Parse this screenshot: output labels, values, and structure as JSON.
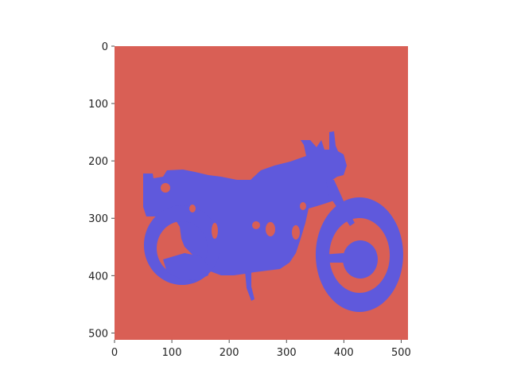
{
  "figure": {
    "image_size": [
      512,
      512
    ],
    "background_class_color": "#d95f55",
    "foreground_class_color": "#5f59dc",
    "foreground_subject": "motorcycle",
    "x_axis": {
      "range": [
        0,
        512
      ],
      "ticks": [
        {
          "value": 0,
          "label": "0"
        },
        {
          "value": 100,
          "label": "100"
        },
        {
          "value": 200,
          "label": "200"
        },
        {
          "value": 300,
          "label": "300"
        },
        {
          "value": 400,
          "label": "400"
        },
        {
          "value": 500,
          "label": "500"
        }
      ]
    },
    "y_axis": {
      "range": [
        0,
        512
      ],
      "inverted": true,
      "ticks": [
        {
          "value": 0,
          "label": "0"
        },
        {
          "value": 100,
          "label": "100"
        },
        {
          "value": 200,
          "label": "200"
        },
        {
          "value": 300,
          "label": "300"
        },
        {
          "value": 400,
          "label": "400"
        },
        {
          "value": 500,
          "label": "500"
        }
      ]
    }
  }
}
